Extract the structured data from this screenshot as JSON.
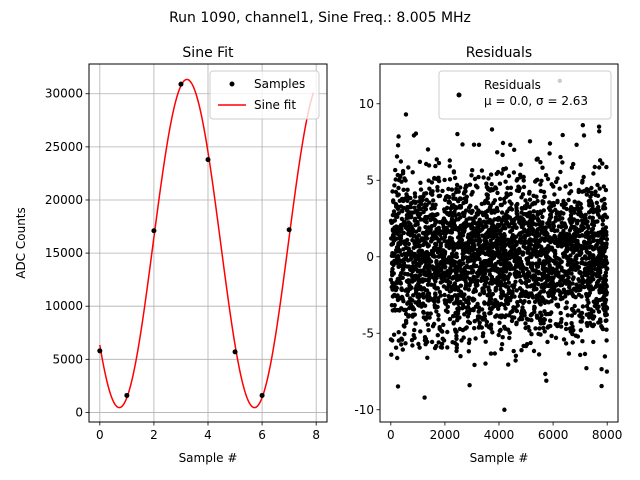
{
  "suptitle": "Run 1090, channel1, Sine Freq.: 8.005 MHz",
  "chart_data": [
    {
      "type": "scatter+line",
      "title": "Sine Fit",
      "xlabel": "Sample #",
      "ylabel": "ADC Counts",
      "xlim": [
        -0.4,
        8.4
      ],
      "ylim": [
        -900,
        32800
      ],
      "xticks": [
        0,
        2,
        4,
        6,
        8
      ],
      "yticks": [
        0,
        5000,
        10000,
        15000,
        20000,
        25000,
        30000
      ],
      "grid": true,
      "legend_position": "top-right",
      "series": [
        {
          "name": "Samples",
          "kind": "scatter",
          "color": "#000000",
          "x": [
            0,
            1,
            2,
            3,
            4,
            5,
            6,
            7
          ],
          "y": [
            5800,
            1600,
            17100,
            30900,
            23800,
            5700,
            1600,
            17200
          ]
        },
        {
          "name": "Sine fit",
          "kind": "line",
          "color": "#ff0000",
          "model": {
            "offset": 15900,
            "amplitude": 15450,
            "period_samples": 5.0,
            "phase_sample": 0.72,
            "x_start": 0,
            "x_end": 7.9
          }
        }
      ]
    },
    {
      "type": "scatter",
      "title": "Residuals",
      "xlabel": "Sample #",
      "ylabel": "",
      "xlim": [
        -400,
        8400
      ],
      "ylim": [
        -10.8,
        12.6
      ],
      "xticks": [
        0,
        2000,
        4000,
        6000,
        8000
      ],
      "yticks": [
        -10,
        -5,
        0,
        5,
        10
      ],
      "grid": false,
      "legend_position": "top-right",
      "series": [
        {
          "name": "Residuals",
          "kind": "scatter",
          "color": "#000000",
          "n_points": 8000,
          "distribution": {
            "mean": 0.0,
            "sigma": 2.63
          },
          "outliers": [
            {
              "x": 6250,
              "y": 11.5
            },
            {
              "x": 4200,
              "y": -10.0
            },
            {
              "x": 1250,
              "y": -9.2
            },
            {
              "x": 560,
              "y": 9.3
            },
            {
              "x": 7100,
              "y": 8.6
            },
            {
              "x": 7700,
              "y": 8.5
            },
            {
              "x": 5750,
              "y": -8.1
            },
            {
              "x": 7990,
              "y": -7.5
            }
          ]
        }
      ],
      "legend_lines": [
        "Residuals",
        "μ = 0.0, σ = 2.63"
      ]
    }
  ]
}
